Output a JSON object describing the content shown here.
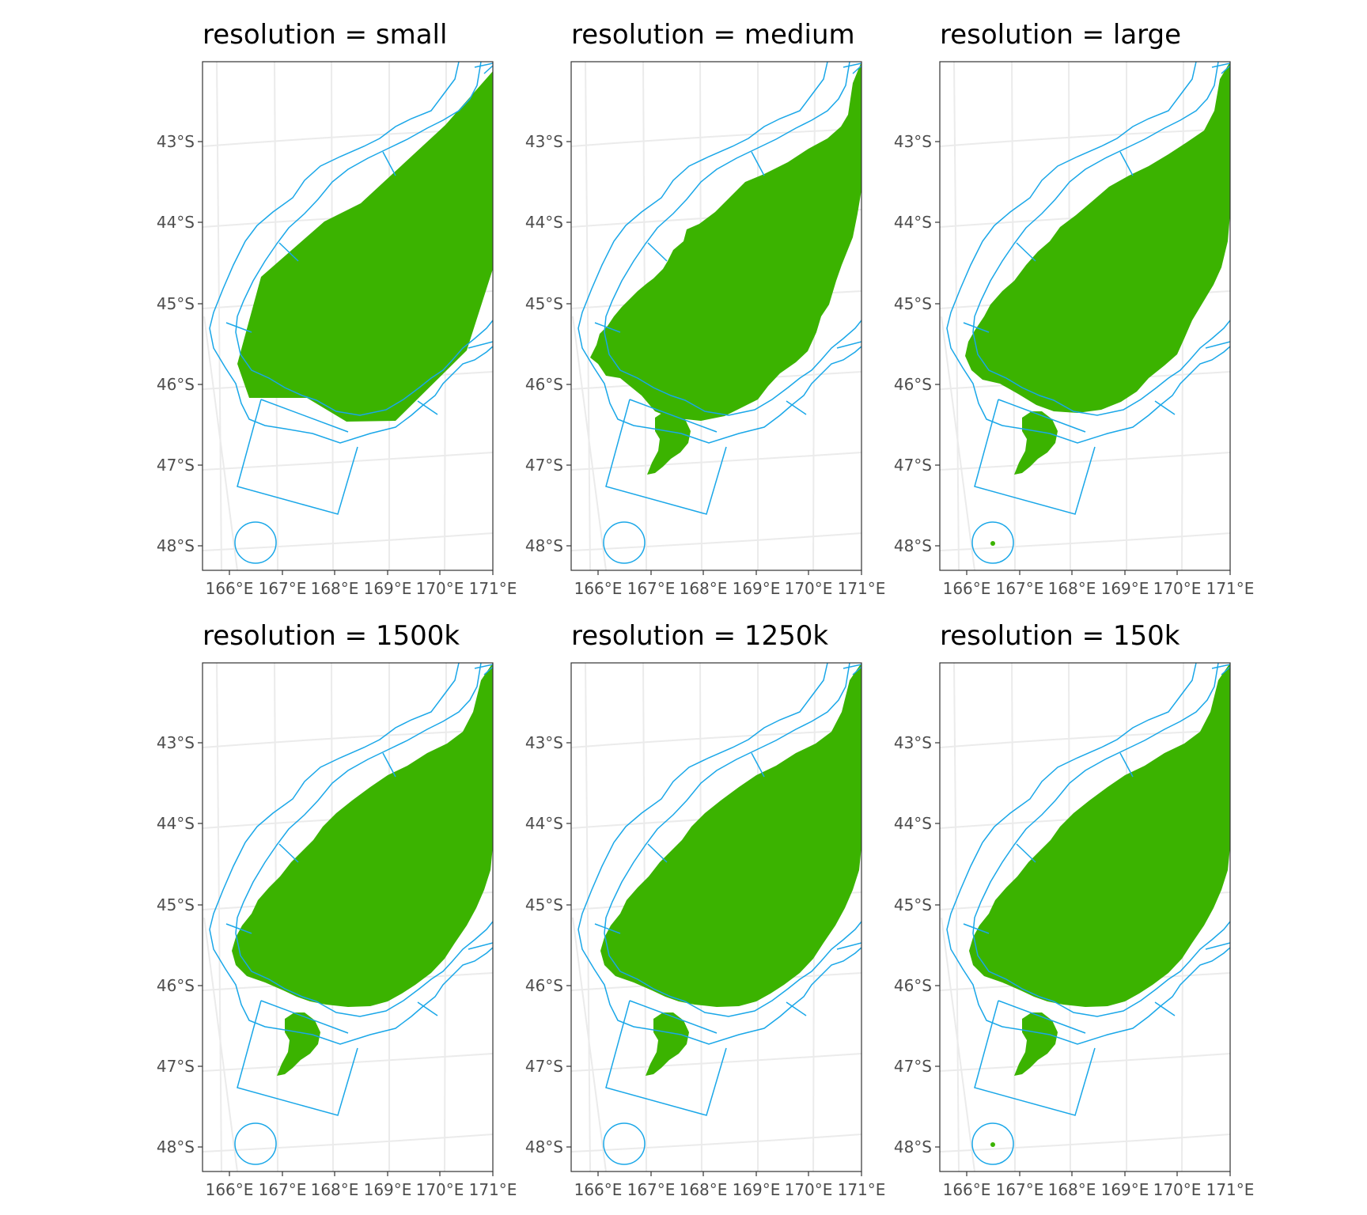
{
  "colors": {
    "background": "#ffffff",
    "land": "#3bb300",
    "boundary": "#1aa7e8",
    "graticule": "#ebebeb",
    "panel_border": "#333333",
    "tick_text": "#4d4d4d",
    "title_text": "#000000"
  },
  "map": {
    "lat_labels": [
      "43°S",
      "44°S",
      "45°S",
      "46°S",
      "47°S",
      "48°S"
    ],
    "lon_labels": [
      "166°E",
      "167°E",
      "168°E",
      "169°E",
      "170°E",
      "171°E"
    ]
  },
  "panels": [
    {
      "title": "resolution = small",
      "detail": "small"
    },
    {
      "title": "resolution = medium",
      "detail": "medium"
    },
    {
      "title": "resolution = large",
      "detail": "large"
    },
    {
      "title": "resolution = 1500k",
      "detail": "fine"
    },
    {
      "title": "resolution = 1250k",
      "detail": "fine"
    },
    {
      "title": "resolution = 150k",
      "detail": "fine_island"
    }
  ]
}
